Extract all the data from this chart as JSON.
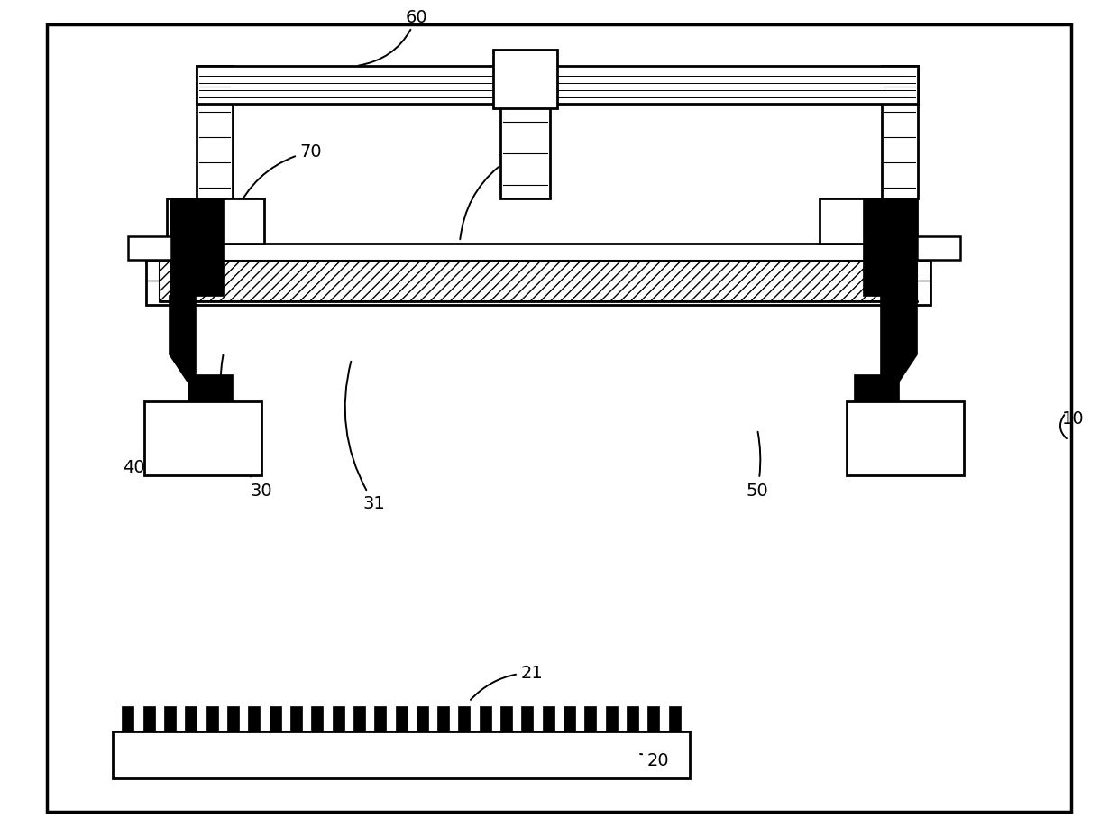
{
  "bg": "#ffffff",
  "bk": "#000000",
  "wh": "#ffffff",
  "figw": 12.4,
  "figh": 9.29,
  "dpi": 100
}
